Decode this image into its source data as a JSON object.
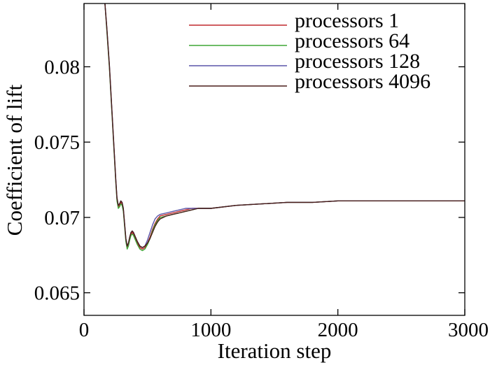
{
  "chart_data": {
    "type": "line",
    "title": "",
    "xlabel": "Iteration step",
    "ylabel": "Coefficient of lift",
    "xlim": [
      0,
      3000
    ],
    "ylim": [
      0.0635,
      0.0842
    ],
    "x_ticks": [
      0,
      1000,
      2000,
      3000
    ],
    "x_tick_labels": [
      "0",
      "1000",
      "2000",
      "3000"
    ],
    "y_ticks": [
      0.065,
      0.07,
      0.075,
      0.08
    ],
    "y_tick_labels": [
      "0.065",
      "0.07",
      "0.075",
      "0.08"
    ],
    "grid": false,
    "legend_position": "top-right",
    "series": [
      {
        "name": "processors 1",
        "color": "#c0282d",
        "x": [
          165,
          180,
          200,
          220,
          240,
          250,
          260,
          270,
          280,
          290,
          300,
          310,
          320,
          330,
          340,
          350,
          360,
          370,
          380,
          390,
          400,
          420,
          440,
          460,
          480,
          500,
          520,
          540,
          560,
          580,
          600,
          650,
          700,
          750,
          800,
          850,
          900,
          1000,
          1200,
          1400,
          1600,
          1800,
          2000,
          2500,
          3000
        ],
        "y": [
          0.0842,
          0.0825,
          0.08,
          0.077,
          0.074,
          0.0725,
          0.0712,
          0.0707,
          0.0708,
          0.071,
          0.0709,
          0.0705,
          0.0695,
          0.0685,
          0.068,
          0.0682,
          0.0686,
          0.0689,
          0.069,
          0.0689,
          0.0687,
          0.0683,
          0.068,
          0.0679,
          0.068,
          0.0683,
          0.0687,
          0.0692,
          0.0696,
          0.0699,
          0.0701,
          0.0702,
          0.0703,
          0.0704,
          0.0705,
          0.0706,
          0.0706,
          0.0706,
          0.0708,
          0.0709,
          0.071,
          0.071,
          0.0711,
          0.0711,
          0.0711
        ]
      },
      {
        "name": "processors 64",
        "color": "#3fa535",
        "x": [
          165,
          180,
          200,
          220,
          240,
          250,
          260,
          270,
          280,
          290,
          300,
          310,
          320,
          330,
          340,
          350,
          360,
          370,
          380,
          390,
          400,
          420,
          440,
          460,
          480,
          500,
          520,
          540,
          560,
          580,
          600,
          650,
          700,
          750,
          800,
          850,
          900,
          1000,
          1200,
          1400,
          1600,
          1800,
          2000,
          2500,
          3000
        ],
        "y": [
          0.0842,
          0.0824,
          0.0799,
          0.0769,
          0.0739,
          0.0724,
          0.0711,
          0.0706,
          0.0707,
          0.0709,
          0.0708,
          0.0704,
          0.0694,
          0.0684,
          0.0679,
          0.0681,
          0.0685,
          0.0688,
          0.0689,
          0.0688,
          0.0686,
          0.0682,
          0.0679,
          0.0678,
          0.0679,
          0.0682,
          0.0686,
          0.0691,
          0.0695,
          0.0698,
          0.07,
          0.0701,
          0.0702,
          0.0703,
          0.0704,
          0.0705,
          0.0706,
          0.0706,
          0.0708,
          0.0709,
          0.071,
          0.071,
          0.0711,
          0.0711,
          0.0711
        ]
      },
      {
        "name": "processors 128",
        "color": "#5a55a8",
        "x": [
          165,
          180,
          200,
          220,
          240,
          250,
          260,
          270,
          280,
          290,
          300,
          310,
          320,
          330,
          340,
          350,
          360,
          370,
          380,
          390,
          400,
          420,
          440,
          460,
          480,
          500,
          520,
          540,
          560,
          580,
          600,
          650,
          700,
          750,
          800,
          850,
          900,
          1000,
          1200,
          1400,
          1600,
          1800,
          2000,
          2500,
          3000
        ],
        "y": [
          0.0842,
          0.0826,
          0.0801,
          0.0771,
          0.0741,
          0.0726,
          0.0713,
          0.0708,
          0.0709,
          0.0711,
          0.071,
          0.0706,
          0.0696,
          0.0686,
          0.0681,
          0.0683,
          0.0687,
          0.069,
          0.0691,
          0.069,
          0.0688,
          0.0684,
          0.0681,
          0.068,
          0.0681,
          0.0685,
          0.069,
          0.0695,
          0.0699,
          0.0701,
          0.0702,
          0.0703,
          0.0704,
          0.0705,
          0.0706,
          0.0706,
          0.0706,
          0.0706,
          0.0708,
          0.0709,
          0.071,
          0.071,
          0.0711,
          0.0711,
          0.0711
        ]
      },
      {
        "name": "processors 4096",
        "color": "#4a1d1a",
        "x": [
          165,
          180,
          200,
          220,
          240,
          250,
          260,
          270,
          280,
          290,
          300,
          310,
          320,
          330,
          340,
          350,
          360,
          370,
          380,
          390,
          400,
          420,
          440,
          460,
          480,
          500,
          520,
          540,
          560,
          580,
          600,
          650,
          700,
          750,
          800,
          850,
          900,
          1000,
          1200,
          1400,
          1600,
          1800,
          2000,
          2500,
          3000
        ],
        "y": [
          0.0842,
          0.0826,
          0.0801,
          0.0771,
          0.0741,
          0.0726,
          0.0713,
          0.0708,
          0.0709,
          0.0711,
          0.071,
          0.0706,
          0.0696,
          0.0686,
          0.0681,
          0.0683,
          0.0687,
          0.069,
          0.0691,
          0.069,
          0.0688,
          0.0684,
          0.0681,
          0.068,
          0.0681,
          0.0683,
          0.0686,
          0.069,
          0.0694,
          0.0697,
          0.0699,
          0.0701,
          0.0702,
          0.0703,
          0.0704,
          0.0705,
          0.0706,
          0.0706,
          0.0708,
          0.0709,
          0.071,
          0.071,
          0.0711,
          0.0711,
          0.0711
        ]
      }
    ]
  }
}
